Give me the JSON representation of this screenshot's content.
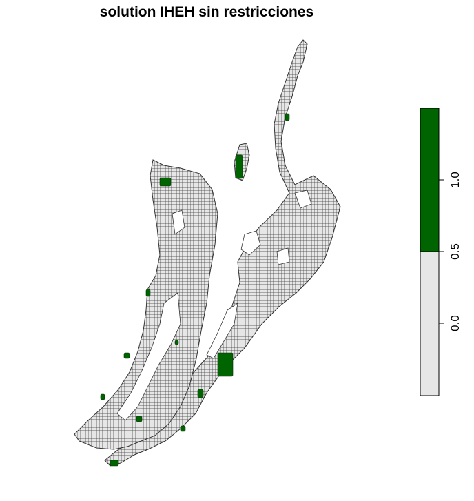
{
  "title": "solution IHEH sin restricciones",
  "colors": {
    "not_selected": "#e6e6e6",
    "selected": "#006400",
    "cell_border": "#222222"
  },
  "legend": {
    "ticks": [
      "1.0",
      "0.5",
      "0.0"
    ],
    "classes": [
      {
        "range": [
          0.5,
          1.0
        ],
        "color": "#006400"
      },
      {
        "range": [
          0.0,
          0.5
        ],
        "color": "#e6e6e6"
      }
    ]
  }
}
